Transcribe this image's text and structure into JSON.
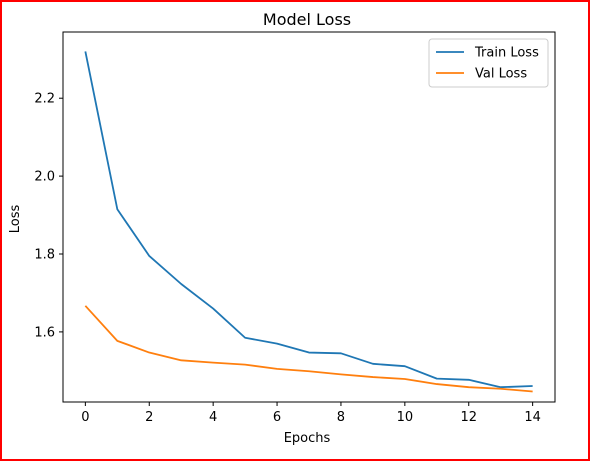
{
  "chart_data": {
    "type": "line",
    "title": "Model Loss",
    "xlabel": "Epochs",
    "ylabel": "Loss",
    "x": [
      0,
      1,
      2,
      3,
      4,
      5,
      6,
      7,
      8,
      9,
      10,
      11,
      12,
      13,
      14
    ],
    "xlim": [
      -0.7,
      14.7
    ],
    "ylim": [
      1.42,
      2.37
    ],
    "xticks": [
      0,
      2,
      4,
      6,
      8,
      10,
      12,
      14
    ],
    "yticks": [
      1.6,
      1.8,
      2.0,
      2.2
    ],
    "ytick_labels": [
      "1.6",
      "1.8",
      "2.0",
      "2.2"
    ],
    "grid": false,
    "legend_position": "top-right",
    "series": [
      {
        "name": "Train Loss",
        "color": "#1f77b4",
        "values": [
          2.32,
          1.915,
          1.795,
          1.723,
          1.66,
          1.585,
          1.57,
          1.547,
          1.545,
          1.518,
          1.512,
          1.48,
          1.477,
          1.458,
          1.461
        ]
      },
      {
        "name": "Val Loss",
        "color": "#ff7f0e",
        "values": [
          1.667,
          1.577,
          1.547,
          1.527,
          1.521,
          1.516,
          1.505,
          1.499,
          1.491,
          1.484,
          1.479,
          1.466,
          1.458,
          1.454,
          1.447
        ]
      }
    ]
  }
}
